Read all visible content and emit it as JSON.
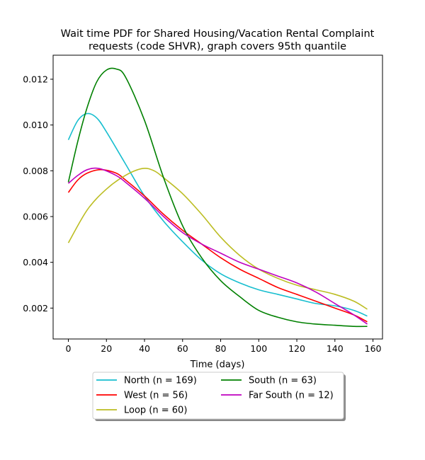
{
  "chart_data": {
    "type": "line",
    "title_line1": "Wait time PDF for Shared Housing/Vacation Rental Complaint",
    "title_line2": "requests (code SHVR), graph covers 95th quantile",
    "xlabel": "Time (days)",
    "ylabel": "",
    "xlim": [
      -8,
      165
    ],
    "ylim": [
      0.00065,
      0.01305
    ],
    "xticks": [
      0,
      20,
      40,
      60,
      80,
      100,
      120,
      140,
      160
    ],
    "yticks": [
      0.002,
      0.004,
      0.006,
      0.008,
      0.01,
      0.012
    ],
    "ytick_labels": [
      "0.002",
      "0.004",
      "0.006",
      "0.008",
      "0.010",
      "0.012"
    ],
    "grid": false,
    "legend_position": "below-center",
    "series": [
      {
        "name": "North (n = 169)",
        "color": "#17becf",
        "x": [
          0,
          5,
          10,
          15,
          20,
          30,
          40,
          50,
          60,
          70,
          80,
          90,
          100,
          110,
          120,
          130,
          140,
          150,
          157
        ],
        "y": [
          0.00935,
          0.0102,
          0.0105,
          0.0103,
          0.0097,
          0.0083,
          0.0069,
          0.0058,
          0.0049,
          0.0041,
          0.0035,
          0.0031,
          0.0028,
          0.0026,
          0.0024,
          0.0022,
          0.0021,
          0.0019,
          0.00165
        ]
      },
      {
        "name": "West (n = 56)",
        "color": "#ff0000",
        "x": [
          0,
          5,
          10,
          17,
          25,
          30,
          40,
          50,
          60,
          70,
          80,
          90,
          100,
          110,
          120,
          130,
          140,
          150,
          157
        ],
        "y": [
          0.00705,
          0.0076,
          0.0079,
          0.00805,
          0.0079,
          0.0076,
          0.0069,
          0.0061,
          0.0054,
          0.0048,
          0.0042,
          0.0037,
          0.0033,
          0.0029,
          0.0026,
          0.0023,
          0.002,
          0.0017,
          0.0014
        ]
      },
      {
        "name": "Loop (n = 60)",
        "color": "#bcbd22",
        "x": [
          0,
          10,
          20,
          30,
          39,
          45,
          50,
          60,
          70,
          80,
          90,
          100,
          110,
          120,
          130,
          140,
          150,
          157
        ],
        "y": [
          0.00485,
          0.0063,
          0.0072,
          0.0078,
          0.0081,
          0.008,
          0.0077,
          0.007,
          0.0061,
          0.0051,
          0.0043,
          0.0037,
          0.0033,
          0.003,
          0.0028,
          0.0026,
          0.0023,
          0.00195
        ]
      },
      {
        "name": "South (n = 63)",
        "color": "#008000",
        "x": [
          0,
          5,
          10,
          15,
          20,
          25,
          30,
          40,
          50,
          60,
          70,
          80,
          90,
          100,
          110,
          120,
          130,
          140,
          150,
          157
        ],
        "y": [
          0.0075,
          0.0093,
          0.0108,
          0.0119,
          0.0124,
          0.01245,
          0.0121,
          0.0102,
          0.0077,
          0.0056,
          0.0042,
          0.0032,
          0.0025,
          0.0019,
          0.0016,
          0.0014,
          0.0013,
          0.00125,
          0.0012,
          0.0012
        ]
      },
      {
        "name": "Far South (n = 12)",
        "color": "#bf00bf",
        "x": [
          0,
          5,
          10,
          16,
          25,
          30,
          40,
          50,
          60,
          70,
          80,
          90,
          100,
          110,
          120,
          130,
          140,
          150,
          157
        ],
        "y": [
          0.00745,
          0.0078,
          0.00805,
          0.0081,
          0.0078,
          0.0075,
          0.0068,
          0.006,
          0.0053,
          0.0048,
          0.0044,
          0.004,
          0.0037,
          0.0034,
          0.0031,
          0.0027,
          0.0022,
          0.0017,
          0.0013
        ]
      }
    ]
  }
}
